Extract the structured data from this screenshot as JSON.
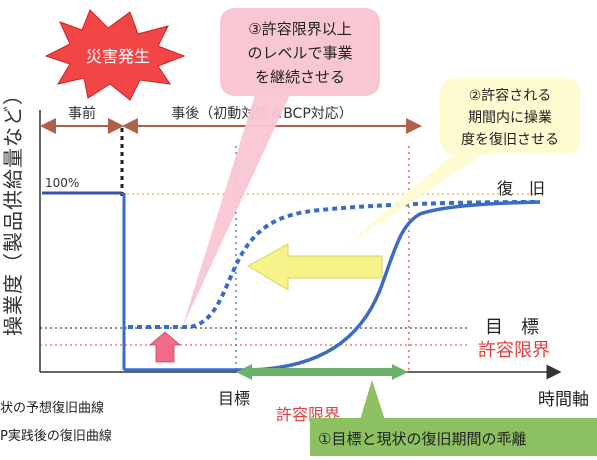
{
  "burst": {
    "label": "災害発生"
  },
  "y_axis_label": "操業度（製品供給量など）",
  "x_axis_label": "時間軸",
  "pre_label": "事前",
  "post_label": "事後（初動対応＆BCP対応）",
  "hundred_label": "100%",
  "recovery_label": "復　旧",
  "target_label": "目　標",
  "tolerance_label": "許容限界",
  "bottom_target_label": "目標",
  "bottom_tolerance_label": "許容限界",
  "callout3": {
    "lines": [
      "③許容限界以上",
      "のレベルで事業",
      "を継続させる"
    ]
  },
  "callout2": {
    "lines": [
      "②許容される",
      "期間内に操業",
      "度を復旧させる"
    ]
  },
  "callout1": {
    "label": "①目標と現状の復旧期間の乖離"
  },
  "legend": {
    "line1": "状の予想復旧曲線",
    "line2": "P実践後の復旧曲線"
  },
  "colors": {
    "solid_curve": "#3a6cc4",
    "dotted_curve": "#3a6cc4",
    "pink_callout": "#f9c6d3",
    "pink_arrow": "#f06a8a",
    "yellow_callout": "#fffbd1",
    "yellow_arrow": "#f6f38a",
    "green_arrow": "#6bb36b",
    "bracket": "#b0604a",
    "tolerance_red": "#e04040",
    "orange_dotted": "#e8b04a"
  }
}
